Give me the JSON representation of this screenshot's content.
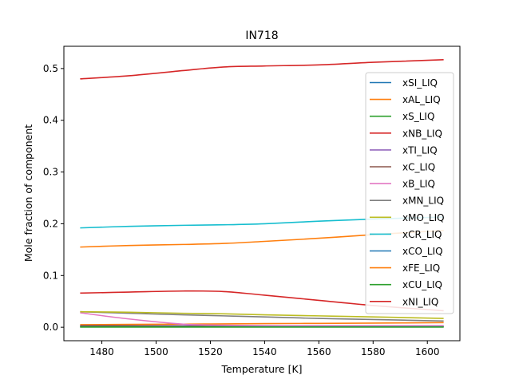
{
  "chart_data": {
    "type": "line",
    "title": "IN718",
    "xlabel": "Temperature [K]",
    "ylabel": "Mole fraction of component",
    "xlim": [
      1466,
      1612
    ],
    "ylim": [
      -0.026,
      0.543
    ],
    "xticks": [
      1480,
      1500,
      1520,
      1540,
      1560,
      1580,
      1600
    ],
    "yticks": [
      0.0,
      0.1,
      0.2,
      0.3,
      0.4,
      0.5
    ],
    "xtick_labels": [
      "1480",
      "1500",
      "1520",
      "1540",
      "1560",
      "1580",
      "1600"
    ],
    "ytick_labels": [
      "0.0",
      "0.1",
      "0.2",
      "0.3",
      "0.4",
      "0.5"
    ],
    "grid": false,
    "legend_position": "right",
    "x": [
      1472,
      1490,
      1510,
      1525,
      1540,
      1560,
      1580,
      1606
    ],
    "series": [
      {
        "name": "xSI_LIQ",
        "color": "#1f77b4",
        "values": [
          0.002,
          0.002,
          0.002,
          0.002,
          0.002,
          0.002,
          0.002,
          0.002
        ]
      },
      {
        "name": "xAL_LIQ",
        "color": "#ff7f0e",
        "values": [
          0.005,
          0.0055,
          0.006,
          0.0065,
          0.007,
          0.0075,
          0.008,
          0.009
        ]
      },
      {
        "name": "xS_LIQ",
        "color": "#2ca02c",
        "values": [
          0.0005,
          0.0005,
          0.0005,
          0.0005,
          0.0005,
          0.0005,
          0.0005,
          0.0005
        ]
      },
      {
        "name": "xNB_LIQ",
        "color": "#d62728",
        "values": [
          0.066,
          0.068,
          0.07,
          0.069,
          0.062,
          0.052,
          0.042,
          0.032
        ]
      },
      {
        "name": "xTI_LIQ",
        "color": "#9467bd",
        "values": [
          0.003,
          0.003,
          0.003,
          0.003,
          0.003,
          0.0025,
          0.0025,
          0.002
        ]
      },
      {
        "name": "xC_LIQ",
        "color": "#8c564b",
        "values": [
          0.003,
          0.003,
          0.002,
          0.002,
          0.002,
          0.002,
          0.002,
          0.002
        ]
      },
      {
        "name": "xB_LIQ",
        "color": "#e377c2",
        "values": [
          0.028,
          0.016,
          0.006,
          0.004,
          0.003,
          0.003,
          0.003,
          0.003
        ]
      },
      {
        "name": "xMN_LIQ",
        "color": "#7f7f7f",
        "values": [
          0.03,
          0.027,
          0.024,
          0.022,
          0.02,
          0.017,
          0.015,
          0.012
        ]
      },
      {
        "name": "xMO_LIQ",
        "color": "#bcbd22",
        "values": [
          0.03,
          0.029,
          0.027,
          0.026,
          0.024,
          0.022,
          0.02,
          0.017
        ]
      },
      {
        "name": "xCR_LIQ",
        "color": "#17becf",
        "values": [
          0.192,
          0.195,
          0.197,
          0.198,
          0.2,
          0.205,
          0.209,
          0.213
        ]
      },
      {
        "name": "xCO_LIQ",
        "color": "#1f77b4",
        "values": [
          0.001,
          0.001,
          0.001,
          0.001,
          0.001,
          0.001,
          0.001,
          0.001
        ]
      },
      {
        "name": "xFE_LIQ",
        "color": "#ff7f0e",
        "values": [
          0.155,
          0.158,
          0.16,
          0.162,
          0.166,
          0.172,
          0.179,
          0.187
        ]
      },
      {
        "name": "xCU_LIQ",
        "color": "#2ca02c",
        "values": [
          0.0005,
          0.0005,
          0.0005,
          0.0005,
          0.0005,
          0.0005,
          0.0005,
          0.0005
        ]
      },
      {
        "name": "xNI_LIQ",
        "color": "#d62728",
        "values": [
          0.48,
          0.486,
          0.496,
          0.503,
          0.505,
          0.507,
          0.512,
          0.517
        ]
      }
    ]
  }
}
